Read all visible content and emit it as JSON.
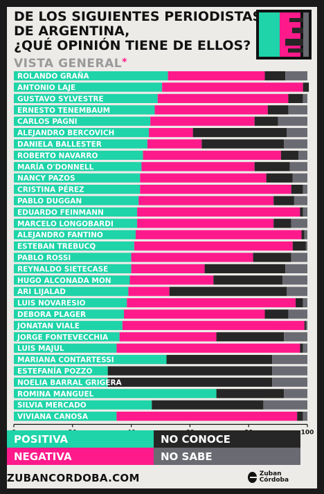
{
  "header": {
    "title_lines": [
      "DE LOS SIGUIENTES PERIODISTAS",
      "DE ARGENTINA,",
      "¿QUÉ OPINIÓN TIENE DE ELLOS?"
    ],
    "subtitle": "VISTA GENERAL",
    "subtitle_mark": "*"
  },
  "footer": {
    "site": "ZUBANCORDOBA.COM",
    "brand": "Zuban Córdoba"
  },
  "legend": {
    "positiva": "POSITIVA",
    "negativa": "NEGATIVA",
    "no_conoce": "NO CONOCE",
    "no_sabe": "NO SABE"
  },
  "colors": {
    "positiva": "#1ed4a8",
    "negativa": "#ff1a8c",
    "no_conoce": "#262626",
    "no_sabe": "#6a6a72",
    "label": "#ffffff"
  },
  "chart_data": {
    "type": "bar",
    "orientation": "horizontal",
    "stacked": true,
    "xlim": [
      0,
      100
    ],
    "x_ticks": [
      "0",
      "20",
      "40",
      "60",
      "80",
      "100"
    ],
    "grid": false,
    "legend_position": "bottom",
    "categories": [
      "ROLANDO GRAÑA",
      "ANTONIO LAJE",
      "GUSTAVO SYLVESTRE",
      "ERNESTO TENEMBAUM",
      "CARLOS PAGNI",
      "ALEJANDRO BERCOVICH",
      "DANIELA BALLESTER",
      "ROBERTO NAVARRO",
      "MARÍA O'DONNELL",
      "NANCY PAZOS",
      "CRISTINA PÉREZ",
      "PABLO DUGGAN",
      "EDUARDO FEINMANN",
      "MARCELO LONGOBARDI",
      "ALEJANDRO FANTINO",
      "ESTEBAN TREBUCQ",
      "PABLO ROSSI",
      "REYNALDO SIETECASE",
      "HUGO ALCONADA MON",
      "ARI LIJALAD",
      "LUIS NOVARESIO",
      "DEBORA PLAGER",
      "JONATAN VIALE",
      "JORGE FONTEVECCHIA",
      "LUIS MAJUL",
      "MARIANA CONTARTESSI",
      "ESTEFANÍA POZZO",
      "NOELIA BARRAL GRIGERA",
      "ROMINA MANGUEL",
      "SILVIA MERCADO",
      "VIVIANA CANOSA"
    ],
    "series": [
      {
        "name": "POSITIVA",
        "values": [
          52.5,
          50.5,
          49,
          48,
          46.5,
          46,
          45.5,
          44,
          43.5,
          43,
          43,
          42.5,
          42,
          42,
          41.5,
          41,
          40,
          40,
          39.5,
          39,
          38.5,
          37.5,
          37,
          36,
          35,
          52,
          32,
          32,
          69,
          47,
          35
        ]
      },
      {
        "name": "NEGATIVA",
        "values": [
          33,
          48,
          44.5,
          38.5,
          35.5,
          15,
          18.5,
          47,
          38.5,
          43,
          51.5,
          46,
          55.5,
          46.5,
          56.5,
          54,
          41.5,
          25,
          28.5,
          14,
          57.5,
          48,
          62,
          33,
          62.5,
          0,
          0,
          0,
          0,
          0,
          61.5
        ]
      },
      {
        "name": "NO CONOCE",
        "values": [
          7,
          2,
          5,
          7,
          8,
          32,
          28,
          6,
          12,
          9,
          4,
          7,
          1,
          6,
          1,
          4.5,
          13,
          27.5,
          23.5,
          40,
          2.5,
          8,
          0.5,
          23,
          1,
          36,
          56,
          56,
          23,
          38,
          2
        ]
      },
      {
        "name": "NO SABE",
        "values": [
          7.5,
          0,
          1.5,
          6.5,
          10,
          7,
          8,
          3,
          6,
          5,
          1.5,
          4.5,
          1.5,
          5.5,
          1,
          0.5,
          5.5,
          7.5,
          8.5,
          7,
          1.5,
          6.5,
          0.5,
          8,
          1.5,
          12,
          12,
          12,
          8,
          15,
          1.5
        ]
      }
    ]
  }
}
